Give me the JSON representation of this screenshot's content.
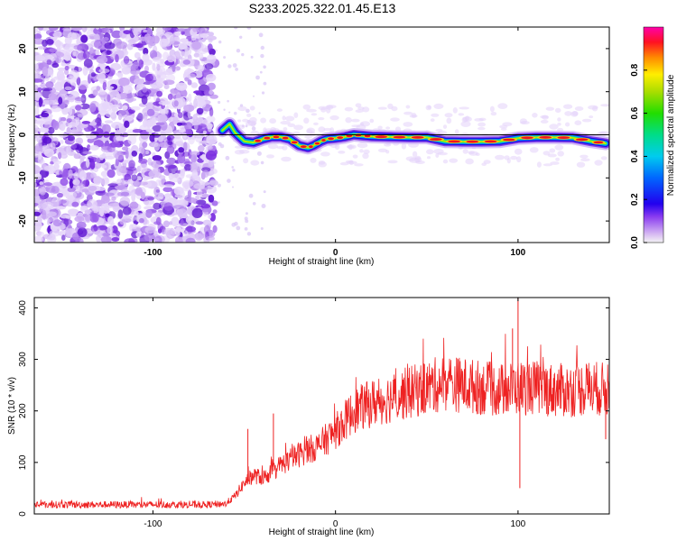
{
  "title": "S233.2025.322.01.45.E13",
  "chart_data": [
    {
      "type": "heatmap",
      "xlabel": "Height of straight line (km)",
      "ylabel": "Frequency (Hz)",
      "xlim": [
        -165,
        150
      ],
      "ylim": [
        -25,
        25
      ],
      "xticks": [
        -100,
        0,
        100
      ],
      "yticks": [
        -20,
        -10,
        0,
        10,
        20
      ],
      "zero_line": 0,
      "ridge": {
        "x": [
          -62,
          -58,
          -55,
          -50,
          -45,
          -40,
          -35,
          -30,
          -25,
          -20,
          -15,
          -12,
          -8,
          -5,
          0,
          5,
          10,
          15,
          20,
          30,
          40,
          50,
          60,
          70,
          80,
          90,
          100,
          110,
          120,
          130,
          140,
          148
        ],
        "y": [
          1.0,
          2.5,
          0.5,
          -1.5,
          -1.8,
          -1.0,
          -0.5,
          -0.5,
          -1.0,
          -2.5,
          -3.0,
          -2.5,
          -1.5,
          -1.0,
          -0.8,
          -0.5,
          0.0,
          -0.2,
          -0.4,
          -0.5,
          -0.6,
          -0.6,
          -1.5,
          -1.6,
          -1.6,
          -1.5,
          -0.8,
          -0.6,
          -0.6,
          -0.7,
          -1.5,
          -2.0
        ]
      },
      "colorbar": {
        "label": "Normalized spectral amplitude",
        "range": [
          0.0,
          1.0
        ],
        "ticks": [
          0.0,
          0.2,
          0.4,
          0.6,
          0.8
        ]
      }
    },
    {
      "type": "line",
      "xlabel": "Height of straight line (km)",
      "ylabel": "SNR (10 * v/v)",
      "xlim": [
        -165,
        150
      ],
      "ylim": [
        0,
        420
      ],
      "xticks": [
        -100,
        0,
        100
      ],
      "yticks": [
        0,
        100,
        200,
        300,
        400
      ],
      "line_color": "#ee2222",
      "trend": {
        "x": [
          -165,
          -140,
          -100,
          -70,
          -60,
          -55,
          -50,
          -45,
          -40,
          -35,
          -30,
          -25,
          -20,
          -15,
          -10,
          -5,
          0,
          10,
          20,
          30,
          40,
          50,
          60,
          70,
          80,
          90,
          100,
          110,
          120,
          130,
          140,
          150
        ],
        "y": [
          18,
          18,
          18,
          18,
          20,
          35,
          60,
          75,
          70,
          80,
          95,
          105,
          115,
          125,
          130,
          145,
          160,
          200,
          215,
          225,
          235,
          245,
          255,
          250,
          245,
          240,
          245,
          245,
          240,
          240,
          245,
          240
        ]
      },
      "spikes": [
        {
          "x": 100,
          "y": 420
        },
        {
          "x": 101,
          "y": 50
        },
        {
          "x": 97,
          "y": 360
        },
        {
          "x": -34,
          "y": 195
        },
        {
          "x": -48,
          "y": 165
        },
        {
          "x": 148,
          "y": 145
        }
      ]
    }
  ]
}
